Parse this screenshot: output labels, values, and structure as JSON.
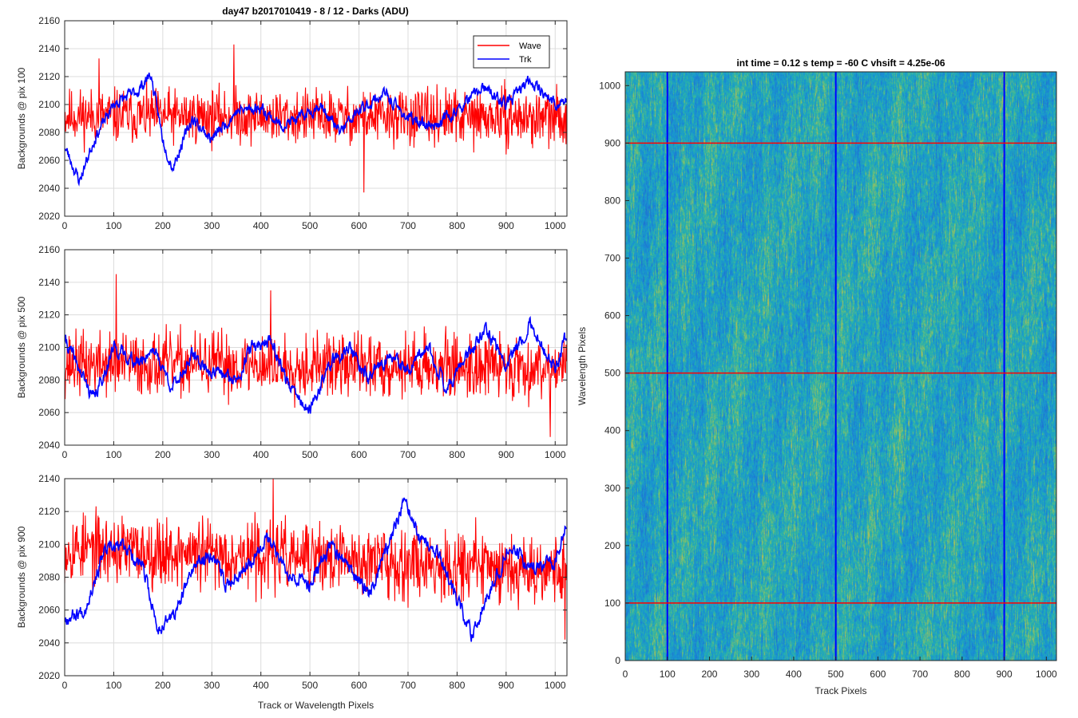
{
  "figure": {
    "title": "day47 b2017010419 - 8 / 12 - Darks (ADU)",
    "image_title": "int time = 0.12 s    temp = -60 C    vhsift = 4.25e-06"
  },
  "chart_data": [
    {
      "type": "line",
      "ylabel": "Backgrounds @ pix 100",
      "xlabel": "",
      "xlim": [
        0,
        1024
      ],
      "ylim": [
        2020,
        2160
      ],
      "yticks": [
        2020,
        2040,
        2060,
        2080,
        2100,
        2120,
        2140,
        2160
      ],
      "xticks": [
        0,
        100,
        200,
        300,
        400,
        500,
        600,
        700,
        800,
        900,
        1000
      ],
      "grid": true,
      "legend": "top-right",
      "series": [
        {
          "name": "Wave",
          "color": "#ff0000",
          "mean": 2092,
          "noise": 12,
          "seed": 11,
          "anchors": [
            [
              0,
              2092
            ],
            [
              1023,
              2090
            ]
          ],
          "spikes": [
            [
              70,
              2133
            ],
            [
              345,
              2143
            ],
            [
              610,
              2037
            ]
          ]
        },
        {
          "name": "Trk",
          "color": "#0000ff",
          "mean": 2090,
          "noise": 3,
          "seed": 23,
          "anchors": [
            [
              0,
              2070
            ],
            [
              30,
              2045
            ],
            [
              60,
              2075
            ],
            [
              100,
              2100
            ],
            [
              150,
              2110
            ],
            [
              175,
              2122
            ],
            [
              200,
              2075
            ],
            [
              220,
              2055
            ],
            [
              260,
              2090
            ],
            [
              300,
              2075
            ],
            [
              350,
              2095
            ],
            [
              400,
              2098
            ],
            [
              440,
              2085
            ],
            [
              480,
              2090
            ],
            [
              520,
              2100
            ],
            [
              560,
              2080
            ],
            [
              600,
              2095
            ],
            [
              650,
              2108
            ],
            [
              700,
              2090
            ],
            [
              750,
              2085
            ],
            [
              800,
              2095
            ],
            [
              850,
              2112
            ],
            [
              900,
              2100
            ],
            [
              950,
              2118
            ],
            [
              1000,
              2100
            ],
            [
              1023,
              2102
            ]
          ]
        }
      ]
    },
    {
      "type": "line",
      "ylabel": "Backgrounds @ pix 500",
      "xlabel": "",
      "xlim": [
        0,
        1024
      ],
      "ylim": [
        2040,
        2160
      ],
      "yticks": [
        2040,
        2060,
        2080,
        2100,
        2120,
        2140,
        2160
      ],
      "xticks": [
        0,
        100,
        200,
        300,
        400,
        500,
        600,
        700,
        800,
        900,
        1000
      ],
      "grid": true,
      "series": [
        {
          "name": "Wave",
          "color": "#ff0000",
          "mean": 2090,
          "noise": 12,
          "seed": 37,
          "anchors": [
            [
              0,
              2090
            ],
            [
              1023,
              2088
            ]
          ],
          "spikes": [
            [
              105,
              2145
            ],
            [
              420,
              2135
            ],
            [
              990,
              2045
            ]
          ]
        },
        {
          "name": "Trk",
          "color": "#0000ff",
          "mean": 2090,
          "noise": 3,
          "seed": 41,
          "anchors": [
            [
              0,
              2105
            ],
            [
              40,
              2080
            ],
            [
              60,
              2068
            ],
            [
              100,
              2100
            ],
            [
              150,
              2090
            ],
            [
              180,
              2100
            ],
            [
              220,
              2075
            ],
            [
              260,
              2095
            ],
            [
              300,
              2085
            ],
            [
              350,
              2080
            ],
            [
              380,
              2100
            ],
            [
              420,
              2105
            ],
            [
              460,
              2075
            ],
            [
              500,
              2060
            ],
            [
              540,
              2090
            ],
            [
              580,
              2100
            ],
            [
              620,
              2080
            ],
            [
              660,
              2095
            ],
            [
              700,
              2085
            ],
            [
              740,
              2100
            ],
            [
              780,
              2075
            ],
            [
              820,
              2095
            ],
            [
              860,
              2110
            ],
            [
              900,
              2090
            ],
            [
              950,
              2115
            ],
            [
              1000,
              2085
            ],
            [
              1023,
              2108
            ]
          ]
        }
      ]
    },
    {
      "type": "line",
      "ylabel": "Backgrounds @ pix 900",
      "xlabel": "Track or Wavelength Pixels",
      "xlim": [
        0,
        1024
      ],
      "ylim": [
        2020,
        2140
      ],
      "yticks": [
        2020,
        2040,
        2060,
        2080,
        2100,
        2120,
        2140
      ],
      "xticks": [
        0,
        100,
        200,
        300,
        400,
        500,
        600,
        700,
        800,
        900,
        1000
      ],
      "grid": true,
      "series": [
        {
          "name": "Wave",
          "color": "#ff0000",
          "mean": 2095,
          "noise": 13,
          "seed": 53,
          "anchors": [
            [
              0,
              2098
            ],
            [
              1023,
              2085
            ]
          ],
          "spikes": [
            [
              425,
              2140
            ],
            [
              1020,
              2042
            ]
          ]
        },
        {
          "name": "Trk",
          "color": "#0000ff",
          "mean": 2085,
          "noise": 3,
          "seed": 67,
          "anchors": [
            [
              0,
              2055
            ],
            [
              40,
              2060
            ],
            [
              80,
              2095
            ],
            [
              120,
              2100
            ],
            [
              160,
              2085
            ],
            [
              190,
              2048
            ],
            [
              230,
              2060
            ],
            [
              260,
              2085
            ],
            [
              300,
              2095
            ],
            [
              330,
              2075
            ],
            [
              380,
              2090
            ],
            [
              410,
              2105
            ],
            [
              450,
              2085
            ],
            [
              500,
              2075
            ],
            [
              540,
              2100
            ],
            [
              580,
              2085
            ],
            [
              620,
              2070
            ],
            [
              660,
              2100
            ],
            [
              690,
              2125
            ],
            [
              730,
              2100
            ],
            [
              760,
              2095
            ],
            [
              800,
              2065
            ],
            [
              830,
              2045
            ],
            [
              870,
              2075
            ],
            [
              910,
              2100
            ],
            [
              950,
              2085
            ],
            [
              1000,
              2090
            ],
            [
              1023,
              2112
            ]
          ]
        }
      ]
    },
    {
      "type": "heatmap",
      "title": "int time = 0.12 s    temp = -60 C    vhsift = 4.25e-06",
      "xlabel": "Track Pixels",
      "ylabel": "Wavelength Pixels",
      "xlim": [
        0,
        1024
      ],
      "ylim": [
        0,
        1024
      ],
      "xticks": [
        0,
        100,
        200,
        300,
        400,
        500,
        600,
        700,
        800,
        900,
        1000
      ],
      "yticks": [
        0,
        100,
        200,
        300,
        400,
        500,
        600,
        700,
        800,
        900,
        1000
      ],
      "hlines": [
        100,
        500,
        900
      ],
      "vlines": [
        100,
        500,
        900
      ],
      "hline_color": "#ff0000",
      "vline_color": "#0000ff",
      "colormap": "parula"
    }
  ]
}
